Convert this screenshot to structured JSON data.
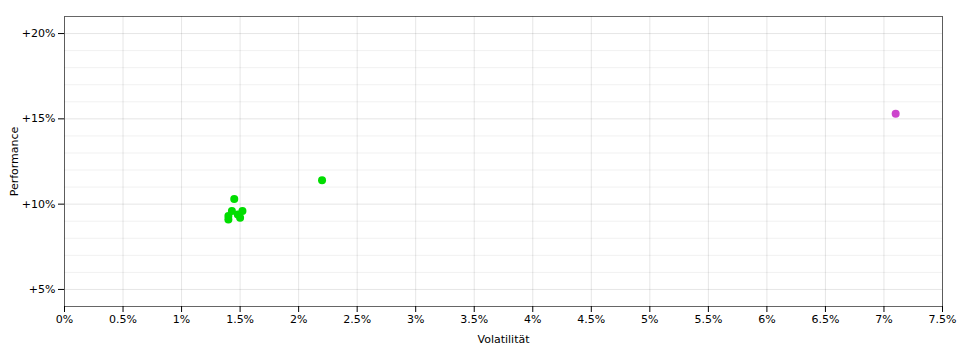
{
  "chart_data": {
    "type": "scatter",
    "xlabel": "Volatilität",
    "ylabel": "Performance",
    "series": [
      {
        "color": "#00dd00",
        "x": [
          0.014,
          0.014,
          0.0143,
          0.0148,
          0.015,
          0.0152,
          0.0145,
          0.022
        ],
        "values": [
          0.093,
          0.091,
          0.096,
          0.094,
          0.092,
          0.096,
          0.103,
          0.114
        ]
      },
      {
        "color": "#cc44cc",
        "x": [
          0.071
        ],
        "values": [
          0.153
        ]
      }
    ],
    "xlim": [
      0.0,
      0.075
    ],
    "ylim": [
      0.04,
      0.21
    ],
    "xticks": [
      {
        "value": 0.0,
        "label": "0%"
      },
      {
        "value": 0.005,
        "label": "0.5%"
      },
      {
        "value": 0.01,
        "label": "1%"
      },
      {
        "value": 0.015,
        "label": "1.5%"
      },
      {
        "value": 0.02,
        "label": "2%"
      },
      {
        "value": 0.025,
        "label": "2.5%"
      },
      {
        "value": 0.03,
        "label": "3%"
      },
      {
        "value": 0.035,
        "label": "3.5%"
      },
      {
        "value": 0.04,
        "label": "4%"
      },
      {
        "value": 0.045,
        "label": "4.5%"
      },
      {
        "value": 0.05,
        "label": "5%"
      },
      {
        "value": 0.055,
        "label": "5.5%"
      },
      {
        "value": 0.06,
        "label": "6%"
      },
      {
        "value": 0.065,
        "label": "6.5%"
      },
      {
        "value": 0.07,
        "label": "7%"
      },
      {
        "value": 0.075,
        "label": "7.5%"
      }
    ],
    "yticks": [
      {
        "value": 0.05,
        "label": "+5%"
      },
      {
        "value": 0.1,
        "label": "+10%"
      },
      {
        "value": 0.15,
        "label": "+15%"
      },
      {
        "value": 0.2,
        "label": "+20%"
      }
    ],
    "minor_yticks": [
      0.06,
      0.07,
      0.08,
      0.09,
      0.11,
      0.12,
      0.13,
      0.14,
      0.16,
      0.17,
      0.18,
      0.19
    ],
    "grid": true
  }
}
